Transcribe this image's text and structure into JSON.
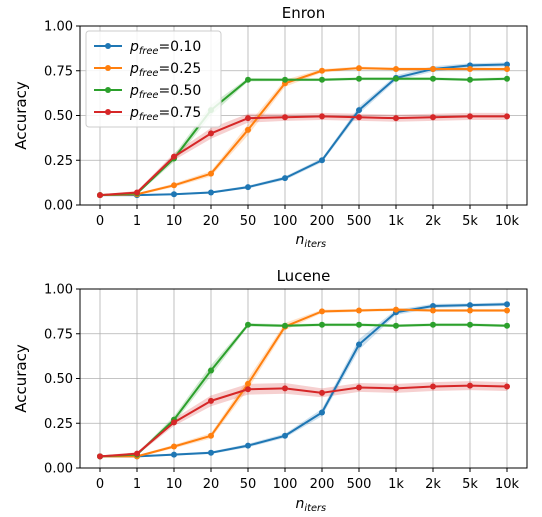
{
  "chart_data": [
    {
      "type": "line",
      "title": "Enron",
      "xlabel": "n",
      "xlabel_sub": "iters",
      "ylabel": "Accuracy",
      "ylim": [
        0.0,
        1.0
      ],
      "yticks": [
        "0.00",
        "0.25",
        "0.50",
        "0.75",
        "1.00"
      ],
      "ytick_values": [
        0.0,
        0.25,
        0.5,
        0.75,
        1.0
      ],
      "categories": [
        "0",
        "1",
        "10",
        "20",
        "50",
        "100",
        "200",
        "500",
        "1k",
        "2k",
        "5k",
        "10k"
      ],
      "grid": true,
      "legend": "top-left",
      "series": [
        {
          "name": "=0.10",
          "name_main": "p",
          "name_sub": "free",
          "color": "#1f77b4",
          "values": [
            0.055,
            0.055,
            0.06,
            0.07,
            0.1,
            0.15,
            0.25,
            0.53,
            0.71,
            0.76,
            0.78,
            0.785
          ],
          "band": [
            0.005,
            0.005,
            0.005,
            0.006,
            0.008,
            0.01,
            0.012,
            0.02,
            0.015,
            0.015,
            0.012,
            0.012
          ]
        },
        {
          "name": "=0.25",
          "name_main": "p",
          "name_sub": "free",
          "color": "#ff7f0e",
          "values": [
            0.055,
            0.06,
            0.11,
            0.175,
            0.42,
            0.68,
            0.75,
            0.765,
            0.76,
            0.76,
            0.76,
            0.76
          ],
          "band": [
            0.005,
            0.006,
            0.01,
            0.015,
            0.03,
            0.02,
            0.01,
            0.008,
            0.008,
            0.008,
            0.008,
            0.008
          ]
        },
        {
          "name": "=0.50",
          "name_main": "p",
          "name_sub": "free",
          "color": "#2ca02c",
          "values": [
            0.055,
            0.065,
            0.26,
            0.53,
            0.7,
            0.7,
            0.7,
            0.705,
            0.705,
            0.705,
            0.7,
            0.705
          ],
          "band": [
            0.005,
            0.006,
            0.02,
            0.03,
            0.01,
            0.008,
            0.008,
            0.008,
            0.008,
            0.008,
            0.008,
            0.008
          ]
        },
        {
          "name": "=0.75",
          "name_main": "p",
          "name_sub": "free",
          "color": "#d62728",
          "values": [
            0.055,
            0.07,
            0.27,
            0.4,
            0.485,
            0.49,
            0.495,
            0.49,
            0.485,
            0.49,
            0.495,
            0.495
          ],
          "band": [
            0.005,
            0.008,
            0.02,
            0.03,
            0.025,
            0.02,
            0.02,
            0.02,
            0.02,
            0.02,
            0.02,
            0.02
          ]
        }
      ]
    },
    {
      "type": "line",
      "title": "Lucene",
      "xlabel": "n",
      "xlabel_sub": "iters",
      "ylabel": "Accuracy",
      "ylim": [
        0.0,
        1.0
      ],
      "yticks": [
        "0.00",
        "0.25",
        "0.50",
        "0.75",
        "1.00"
      ],
      "ytick_values": [
        0.0,
        0.25,
        0.5,
        0.75,
        1.0
      ],
      "categories": [
        "0",
        "1",
        "10",
        "20",
        "50",
        "100",
        "200",
        "500",
        "1k",
        "2k",
        "5k",
        "10k"
      ],
      "grid": true,
      "legend": "none",
      "series": [
        {
          "name": "=0.10",
          "name_main": "p",
          "name_sub": "free",
          "color": "#1f77b4",
          "values": [
            0.065,
            0.065,
            0.075,
            0.085,
            0.125,
            0.18,
            0.31,
            0.69,
            0.87,
            0.905,
            0.91,
            0.915
          ],
          "band": [
            0.005,
            0.005,
            0.006,
            0.007,
            0.01,
            0.012,
            0.02,
            0.03,
            0.015,
            0.012,
            0.01,
            0.01
          ]
        },
        {
          "name": "=0.25",
          "name_main": "p",
          "name_sub": "free",
          "color": "#ff7f0e",
          "values": [
            0.065,
            0.065,
            0.12,
            0.18,
            0.47,
            0.79,
            0.875,
            0.88,
            0.885,
            0.88,
            0.88,
            0.88
          ],
          "band": [
            0.005,
            0.006,
            0.01,
            0.015,
            0.03,
            0.02,
            0.01,
            0.008,
            0.008,
            0.008,
            0.008,
            0.008
          ]
        },
        {
          "name": "=0.50",
          "name_main": "p",
          "name_sub": "free",
          "color": "#2ca02c",
          "values": [
            0.065,
            0.075,
            0.27,
            0.545,
            0.8,
            0.795,
            0.8,
            0.8,
            0.795,
            0.8,
            0.8,
            0.795
          ],
          "band": [
            0.005,
            0.006,
            0.02,
            0.03,
            0.01,
            0.008,
            0.008,
            0.008,
            0.008,
            0.008,
            0.008,
            0.008
          ]
        },
        {
          "name": "=0.75",
          "name_main": "p",
          "name_sub": "free",
          "color": "#d62728",
          "values": [
            0.065,
            0.08,
            0.255,
            0.375,
            0.44,
            0.445,
            0.42,
            0.45,
            0.445,
            0.455,
            0.46,
            0.455
          ],
          "band": [
            0.005,
            0.008,
            0.02,
            0.03,
            0.03,
            0.03,
            0.025,
            0.025,
            0.025,
            0.025,
            0.025,
            0.025
          ]
        }
      ]
    }
  ]
}
